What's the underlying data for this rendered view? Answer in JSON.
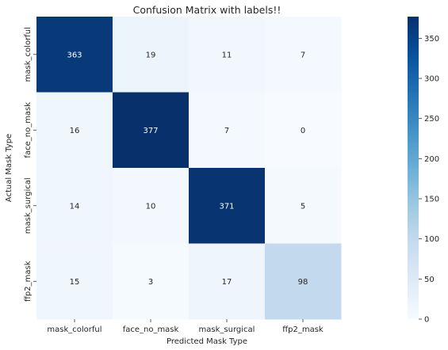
{
  "chart_data": {
    "type": "heatmap",
    "title": "Confusion Matrix with labels!!",
    "xlabel": "Predicted Mask Type",
    "ylabel": "Actual Mask Type",
    "x_categories": [
      "mask_colorful",
      "face_no_mask",
      "mask_surgical",
      "ffp2_mask"
    ],
    "y_categories": [
      "mask_colorful",
      "face_no_mask",
      "mask_surgical",
      "ffp2_mask"
    ],
    "values": [
      [
        363,
        19,
        11,
        7
      ],
      [
        16,
        377,
        7,
        0
      ],
      [
        14,
        10,
        371,
        5
      ],
      [
        15,
        3,
        17,
        98
      ]
    ],
    "colorbar": {
      "min": 0,
      "max": 377,
      "ticks": [
        0,
        50,
        100,
        150,
        200,
        250,
        300,
        350
      ]
    },
    "colormap": "Blues",
    "annotated": true
  }
}
